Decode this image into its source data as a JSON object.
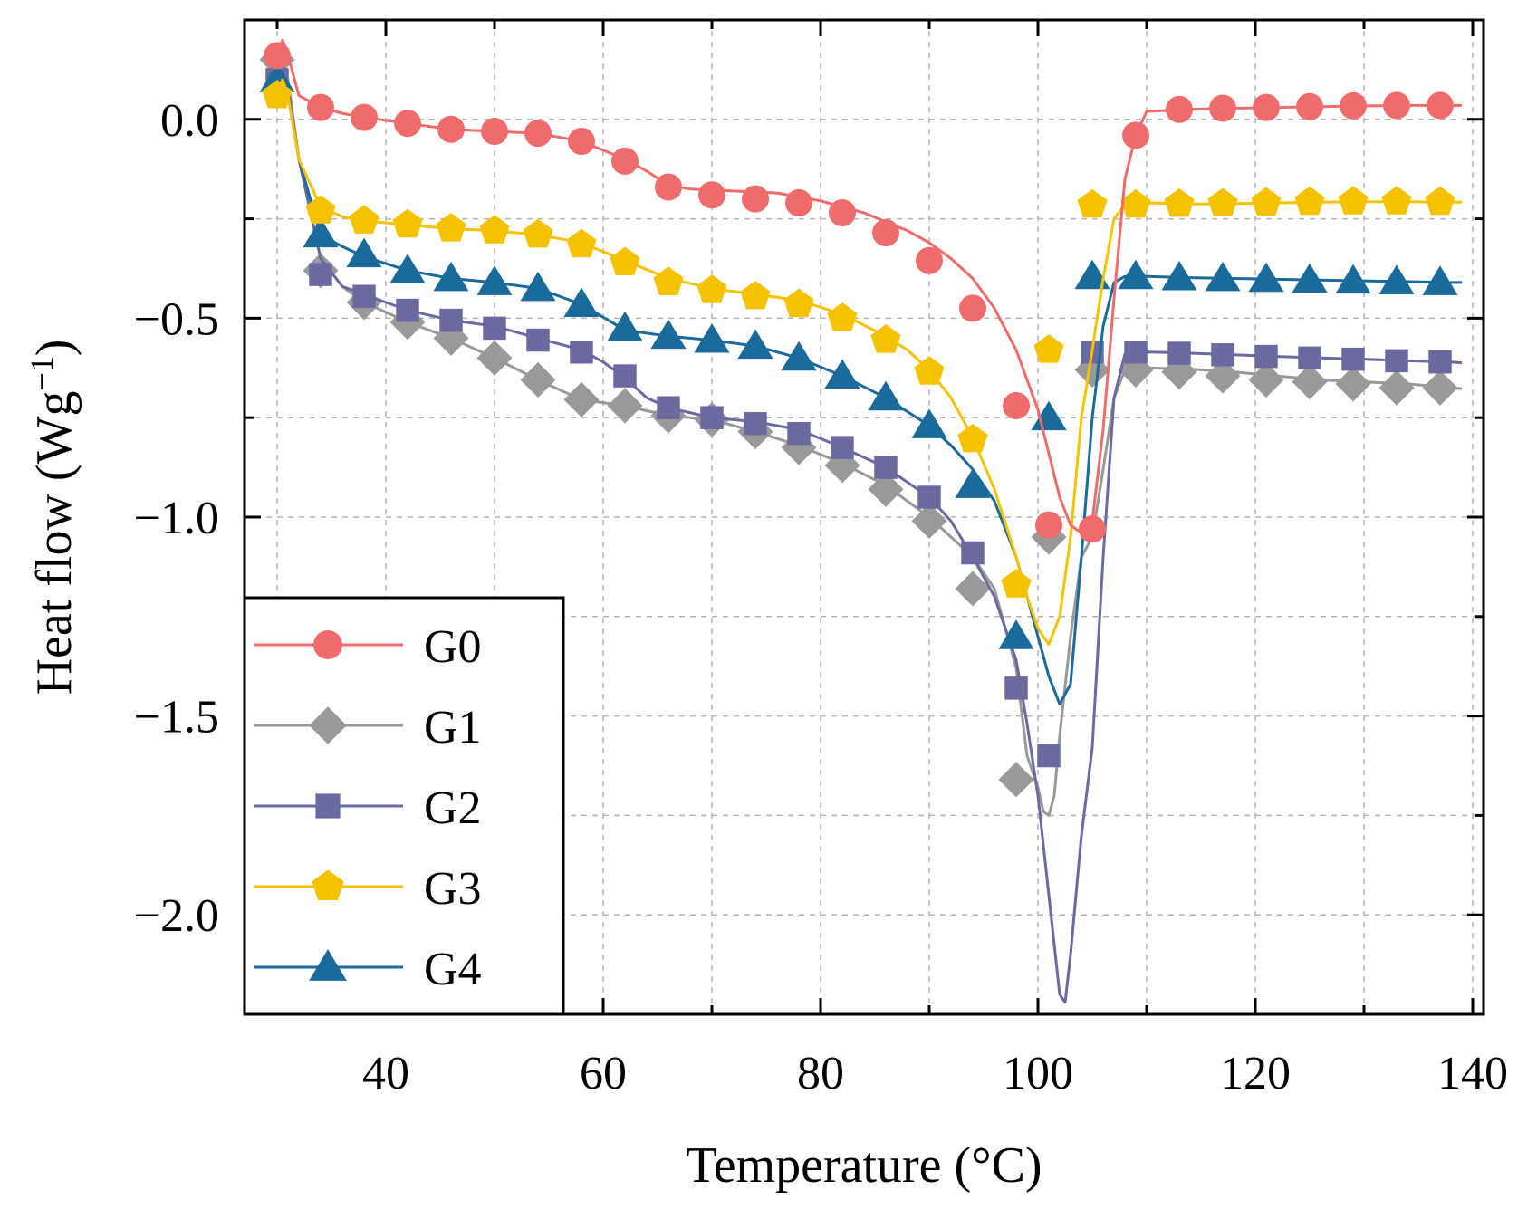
{
  "chart_data": {
    "type": "line",
    "title": "",
    "xlabel": "Temperature (°C)",
    "ylabel_main": "Heat flow (Wg",
    "ylabel_sup": "−1",
    "ylabel_close": ")",
    "xlim": [
      27,
      141
    ],
    "ylim": [
      -2.25,
      0.25
    ],
    "xticks": [
      40,
      60,
      80,
      100,
      120,
      140
    ],
    "xtick_labels": [
      "40",
      "60",
      "80",
      "100",
      "120",
      "140"
    ],
    "yticks": [
      0.0,
      -0.5,
      -1.0,
      -1.5,
      -2.0
    ],
    "ytick_labels": [
      "0.0",
      "−0.5",
      "−1.0",
      "−1.5",
      "−2.0"
    ],
    "grid": true,
    "legend_position": "bottom-left",
    "series": [
      {
        "name": "G0",
        "color": "#f06b6b",
        "marker": "circle",
        "x": [
          30,
          30.5,
          31,
          32,
          34,
          36,
          38,
          42,
          46,
          50,
          54,
          58,
          62,
          64,
          66,
          68,
          72,
          76,
          80,
          84,
          88,
          90,
          92,
          94,
          96,
          98,
          100,
          101,
          102,
          103,
          104,
          104.5,
          105,
          106,
          107,
          108,
          109,
          110,
          114,
          118,
          122,
          126,
          130,
          134,
          138,
          139
        ],
        "y": [
          0.16,
          0.2,
          0.16,
          0.06,
          0.03,
          0.015,
          0.005,
          -0.01,
          -0.025,
          -0.03,
          -0.035,
          -0.055,
          -0.1,
          -0.13,
          -0.165,
          -0.175,
          -0.18,
          -0.185,
          -0.205,
          -0.235,
          -0.28,
          -0.31,
          -0.35,
          -0.4,
          -0.475,
          -0.58,
          -0.73,
          -0.84,
          -0.95,
          -1.02,
          -1.04,
          -1.04,
          -1.01,
          -0.78,
          -0.45,
          -0.15,
          -0.04,
          0.02,
          0.025,
          0.028,
          0.03,
          0.032,
          0.034,
          0.035,
          0.035,
          0.035
        ],
        "marker_x": [
          30,
          34,
          38,
          42,
          46,
          50,
          54,
          58,
          62,
          66,
          70,
          74,
          78,
          82,
          86,
          90,
          94,
          98,
          101,
          105,
          109,
          113,
          117,
          121,
          125,
          129,
          133,
          137
        ],
        "marker_y": [
          0.16,
          0.03,
          0.005,
          -0.01,
          -0.025,
          -0.03,
          -0.035,
          -0.055,
          -0.105,
          -0.17,
          -0.19,
          -0.2,
          -0.21,
          -0.235,
          -0.285,
          -0.355,
          -0.475,
          -0.72,
          -1.02,
          -1.03,
          -0.04,
          0.025,
          0.028,
          0.03,
          0.032,
          0.034,
          0.035,
          0.035
        ]
      },
      {
        "name": "G1",
        "color": "#999999",
        "marker": "diamond",
        "x": [
          30,
          30.5,
          31,
          32,
          34,
          36,
          38,
          42,
          46,
          50,
          54,
          58,
          62,
          66,
          70,
          74,
          78,
          82,
          86,
          90,
          94,
          96,
          98,
          99,
          100,
          100.5,
          101,
          101.5,
          102,
          103,
          104,
          105,
          106,
          107,
          108,
          110,
          114,
          118,
          122,
          126,
          130,
          134,
          138,
          139
        ],
        "y": [
          0.15,
          0.17,
          0.1,
          -0.1,
          -0.35,
          -0.42,
          -0.46,
          -0.51,
          -0.55,
          -0.6,
          -0.655,
          -0.705,
          -0.72,
          -0.745,
          -0.755,
          -0.785,
          -0.82,
          -0.865,
          -0.92,
          -1.0,
          -1.1,
          -1.18,
          -1.38,
          -1.6,
          -1.68,
          -1.74,
          -1.75,
          -1.7,
          -1.55,
          -1.3,
          -1.1,
          -1.05,
          -0.88,
          -0.7,
          -0.63,
          -0.625,
          -0.628,
          -0.635,
          -0.645,
          -0.655,
          -0.66,
          -0.665,
          -0.675,
          -0.677
        ],
        "marker_x": [
          30,
          34,
          38,
          42,
          46,
          50,
          54,
          58,
          62,
          66,
          70,
          74,
          78,
          82,
          86,
          90,
          94,
          98,
          101,
          105,
          109,
          113,
          117,
          121,
          125,
          129,
          133,
          137
        ],
        "marker_y": [
          0.15,
          -0.38,
          -0.46,
          -0.51,
          -0.55,
          -0.6,
          -0.655,
          -0.705,
          -0.72,
          -0.745,
          -0.755,
          -0.785,
          -0.825,
          -0.87,
          -0.93,
          -1.01,
          -1.18,
          -1.66,
          -1.05,
          -0.63,
          -0.63,
          -0.635,
          -0.645,
          -0.655,
          -0.66,
          -0.665,
          -0.675,
          -0.675
        ]
      },
      {
        "name": "G2",
        "color": "#6a6aa0",
        "marker": "square",
        "x": [
          30,
          30.5,
          31,
          32,
          34,
          36,
          38,
          42,
          46,
          50,
          54,
          58,
          60,
          62,
          64,
          66,
          70,
          74,
          78,
          82,
          86,
          90,
          92,
          94,
          96,
          98,
          99,
          100,
          101,
          102,
          102.5,
          103,
          104,
          105,
          106,
          107,
          108,
          110,
          114,
          118,
          122,
          126,
          130,
          134,
          138,
          139
        ],
        "y": [
          0.12,
          0.14,
          0.08,
          -0.1,
          -0.35,
          -0.42,
          -0.44,
          -0.48,
          -0.505,
          -0.52,
          -0.55,
          -0.58,
          -0.61,
          -0.65,
          -0.7,
          -0.725,
          -0.75,
          -0.76,
          -0.78,
          -0.825,
          -0.875,
          -0.95,
          -1.01,
          -1.1,
          -1.2,
          -1.36,
          -1.52,
          -1.7,
          -1.95,
          -2.2,
          -2.22,
          -2.1,
          -1.8,
          -1.58,
          -1.1,
          -0.7,
          -0.59,
          -0.585,
          -0.588,
          -0.592,
          -0.596,
          -0.6,
          -0.603,
          -0.607,
          -0.61,
          -0.612
        ],
        "marker_x": [
          30,
          34,
          38,
          42,
          46,
          50,
          54,
          58,
          62,
          66,
          70,
          74,
          78,
          82,
          86,
          90,
          94,
          98,
          101,
          105,
          109,
          113,
          117,
          121,
          125,
          129,
          133,
          137
        ],
        "marker_y": [
          0.1,
          -0.39,
          -0.445,
          -0.48,
          -0.505,
          -0.525,
          -0.555,
          -0.585,
          -0.645,
          -0.725,
          -0.75,
          -0.765,
          -0.79,
          -0.825,
          -0.875,
          -0.95,
          -1.09,
          -1.43,
          -1.6,
          -0.585,
          -0.585,
          -0.588,
          -0.592,
          -0.596,
          -0.6,
          -0.603,
          -0.607,
          -0.61
        ]
      },
      {
        "name": "G3",
        "color": "#f5c200",
        "marker": "pentagon",
        "x": [
          30,
          30.5,
          31,
          32,
          34,
          36,
          38,
          42,
          46,
          50,
          54,
          58,
          62,
          66,
          70,
          74,
          78,
          82,
          86,
          88,
          90,
          92,
          94,
          96,
          98,
          99,
          100,
          101,
          102,
          103,
          104,
          105,
          106,
          107,
          108,
          110,
          114,
          118,
          122,
          126,
          130,
          134,
          138,
          139
        ],
        "y": [
          0.07,
          0.1,
          0.06,
          -0.1,
          -0.22,
          -0.245,
          -0.255,
          -0.265,
          -0.275,
          -0.28,
          -0.29,
          -0.31,
          -0.355,
          -0.4,
          -0.425,
          -0.44,
          -0.455,
          -0.49,
          -0.545,
          -0.58,
          -0.63,
          -0.7,
          -0.8,
          -0.93,
          -1.1,
          -1.2,
          -1.28,
          -1.32,
          -1.25,
          -1.05,
          -0.75,
          -0.58,
          -0.4,
          -0.25,
          -0.215,
          -0.21,
          -0.213,
          -0.212,
          -0.21,
          -0.208,
          -0.207,
          -0.207,
          -0.208,
          -0.208
        ],
        "marker_x": [
          30,
          34,
          38,
          42,
          46,
          50,
          54,
          58,
          62,
          66,
          70,
          74,
          78,
          82,
          86,
          90,
          94,
          98,
          101,
          105,
          109,
          113,
          117,
          121,
          125,
          129,
          133,
          137
        ],
        "marker_y": [
          0.06,
          -0.23,
          -0.255,
          -0.265,
          -0.275,
          -0.28,
          -0.29,
          -0.315,
          -0.36,
          -0.41,
          -0.43,
          -0.445,
          -0.465,
          -0.5,
          -0.555,
          -0.635,
          -0.805,
          -1.17,
          -0.58,
          -0.215,
          -0.215,
          -0.213,
          -0.212,
          -0.21,
          -0.208,
          -0.207,
          -0.207,
          -0.208
        ]
      },
      {
        "name": "G4",
        "color": "#1a6b9b",
        "marker": "triangle",
        "x": [
          30,
          30.5,
          31,
          32,
          34,
          36,
          38,
          42,
          46,
          50,
          54,
          58,
          62,
          66,
          70,
          74,
          78,
          82,
          86,
          90,
          92,
          94,
          96,
          98,
          99,
          100,
          101,
          102,
          103,
          104,
          105,
          106,
          107,
          108,
          110,
          114,
          118,
          122,
          126,
          130,
          134,
          138,
          139
        ],
        "y": [
          0.1,
          0.12,
          0.06,
          -0.1,
          -0.29,
          -0.32,
          -0.345,
          -0.38,
          -0.4,
          -0.41,
          -0.425,
          -0.465,
          -0.53,
          -0.545,
          -0.555,
          -0.57,
          -0.6,
          -0.645,
          -0.7,
          -0.77,
          -0.82,
          -0.88,
          -0.96,
          -1.1,
          -1.2,
          -1.3,
          -1.4,
          -1.47,
          -1.42,
          -1.1,
          -0.75,
          -0.52,
          -0.41,
          -0.395,
          -0.395,
          -0.398,
          -0.4,
          -0.402,
          -0.404,
          -0.406,
          -0.408,
          -0.41,
          -0.41
        ],
        "marker_x": [
          30,
          34,
          38,
          42,
          46,
          50,
          54,
          58,
          62,
          66,
          70,
          74,
          78,
          82,
          86,
          90,
          94,
          98,
          101,
          105,
          109,
          113,
          117,
          121,
          125,
          129,
          133,
          137
        ],
        "marker_y": [
          0.1,
          -0.29,
          -0.34,
          -0.38,
          -0.4,
          -0.41,
          -0.425,
          -0.465,
          -0.525,
          -0.545,
          -0.555,
          -0.57,
          -0.6,
          -0.645,
          -0.7,
          -0.77,
          -0.92,
          -1.3,
          -0.75,
          -0.395,
          -0.395,
          -0.398,
          -0.4,
          -0.402,
          -0.404,
          -0.406,
          -0.408,
          -0.41
        ]
      }
    ]
  }
}
